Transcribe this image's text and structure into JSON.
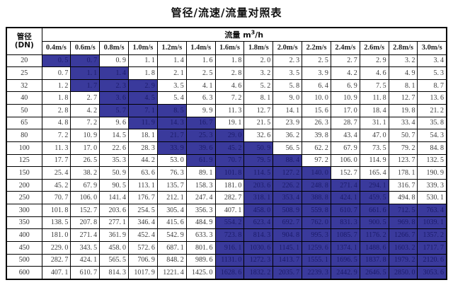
{
  "title": "管径/流速/流量对照表",
  "table": {
    "corner_header": {
      "line1": "管径",
      "line2": "(DN)"
    },
    "flow_header": {
      "prefix": "流量 m",
      "sup": "3",
      "suffix": "/h"
    },
    "velocity_headers": [
      "0.4m/s",
      "0.6m/s",
      "0.8m/s",
      "1.0m/s",
      "1.2m/s",
      "1.4m/s",
      "1.6m/s",
      "1.8m/s",
      "2.0m/s",
      "2.2m/s",
      "2.4m/s",
      "2.6m/s",
      "2.8m/s",
      "3.0m/s"
    ],
    "rows": [
      {
        "dn": "20",
        "values": [
          "0.5",
          "0.7",
          "0.9",
          "1.1",
          "1.4",
          "1.6",
          "1.8",
          "2.0",
          "2.3",
          "2.5",
          "2.7",
          "2.9",
          "3.2",
          "3.4"
        ],
        "highlight": [
          0,
          1
        ]
      },
      {
        "dn": "25",
        "values": [
          "0.7",
          "1.1",
          "1.4",
          "1.8",
          "2.1",
          "2.5",
          "2.8",
          "3.2",
          "3.5",
          "3.9",
          "4.2",
          "4.6",
          "4.9",
          "5.3"
        ],
        "highlight": [
          1,
          2
        ]
      },
      {
        "dn": "32",
        "values": [
          "1.2",
          "1.7",
          "2.3",
          "2.9",
          "3.5",
          "4.1",
          "4.6",
          "5.2",
          "5.8",
          "6.4",
          "6.9",
          "7.5",
          "8.1",
          "8.7"
        ],
        "highlight": [
          1,
          3
        ]
      },
      {
        "dn": "40",
        "values": [
          "1.8",
          "2.7",
          "3.6",
          "4.5",
          "5.4",
          "6.3",
          "7.2",
          "8.1",
          "9.0",
          "10.0",
          "10.9",
          "11.8",
          "12.7",
          "13.6"
        ],
        "highlight": [
          2,
          3
        ]
      },
      {
        "dn": "50",
        "values": [
          "2.8",
          "4.2",
          "5.7",
          "7.1",
          "8.5",
          "9.9",
          "11.3",
          "12.7",
          "14.1",
          "15.6",
          "17.0",
          "18.4",
          "19.8",
          "21.2"
        ],
        "highlight": [
          2,
          4
        ]
      },
      {
        "dn": "65",
        "values": [
          "4.8",
          "7.2",
          "9.6",
          "11.9",
          "14.3",
          "16.7",
          "19.1",
          "21.5",
          "23.9",
          "26.3",
          "28.7",
          "31.1",
          "33.4",
          "35.8"
        ],
        "highlight": [
          3,
          5
        ]
      },
      {
        "dn": "80",
        "values": [
          "7.2",
          "10.9",
          "14.5",
          "18.1",
          "21.7",
          "25.3",
          "29.0",
          "32.6",
          "36.2",
          "39.8",
          "43.4",
          "47.0",
          "50.7",
          "54.3"
        ],
        "highlight": [
          4,
          6
        ]
      },
      {
        "dn": "100",
        "values": [
          "11.3",
          "17.0",
          "22.6",
          "28.3",
          "33.9",
          "39.6",
          "45.2",
          "50.9",
          "56.5",
          "62.2",
          "67.9",
          "73.5",
          "79.2",
          "84.8"
        ],
        "highlight": [
          4,
          7
        ]
      },
      {
        "dn": "125",
        "values": [
          "17.7",
          "26.5",
          "35.3",
          "44.2",
          "53.0",
          "61.9",
          "70.7",
          "79.5",
          "88.4",
          "97.2",
          "106.0",
          "114.9",
          "123.7",
          "132.5"
        ],
        "highlight": [
          5,
          8
        ]
      },
      {
        "dn": "150",
        "values": [
          "25.4",
          "38.2",
          "50.9",
          "63.6",
          "76.3",
          "89.1",
          "101.8",
          "114.5",
          "127.2",
          "140.0",
          "152.7",
          "165.4",
          "178.1",
          "190.9"
        ],
        "highlight": [
          6,
          9
        ]
      },
      {
        "dn": "200",
        "values": [
          "45.2",
          "67.9",
          "90.5",
          "113.1",
          "135.7",
          "158.3",
          "181.0",
          "203.6",
          "226.2",
          "248.8",
          "271.4",
          "294.1",
          "316.7",
          "339.3"
        ],
        "highlight": [
          7,
          11
        ]
      },
      {
        "dn": "250",
        "values": [
          "70.7",
          "106.0",
          "141.4",
          "176.7",
          "212.1",
          "247.4",
          "282.7",
          "318.1",
          "353.4",
          "388.8",
          "424.1",
          "459.5",
          "494.8",
          "530.1"
        ],
        "highlight": [
          7,
          11
        ]
      },
      {
        "dn": "300",
        "values": [
          "101.8",
          "152.7",
          "203.6",
          "254.5",
          "305.4",
          "356.3",
          "407.1",
          "458.0",
          "508.9",
          "559.8",
          "610.7",
          "661.6",
          "712.5",
          "763.4"
        ],
        "highlight": [
          7,
          13
        ]
      },
      {
        "dn": "350",
        "values": [
          "138.5",
          "207.8",
          "277.1",
          "346.4",
          "415.6",
          "484.9",
          "554.2",
          "623.4",
          "692.7",
          "762.0",
          "831.3",
          "900.5",
          "969.8",
          "1039.1"
        ],
        "highlight": [
          6,
          13
        ]
      },
      {
        "dn": "400",
        "values": [
          "181.0",
          "271.4",
          "361.9",
          "452.4",
          "542.9",
          "633.3",
          "723.8",
          "814.3",
          "904.8",
          "995.3",
          "1085.7",
          "1176.2",
          "1266.7",
          "1357.2"
        ],
        "highlight": [
          6,
          13
        ]
      },
      {
        "dn": "450",
        "values": [
          "229.0",
          "343.5",
          "458.0",
          "572.6",
          "687.1",
          "801.6",
          "916.1",
          "1030.6",
          "1145.1",
          "1259.6",
          "1374.1",
          "1488.6",
          "1603.2",
          "1717.7"
        ],
        "highlight": [
          6,
          13
        ]
      },
      {
        "dn": "500",
        "values": [
          "282.7",
          "424.1",
          "565.5",
          "706.9",
          "848.2",
          "989.6",
          "1131.0",
          "1272.3",
          "1413.7",
          "1555.1",
          "1696.5",
          "1837.8",
          "1979.2",
          "2120.6"
        ],
        "highlight": [
          6,
          13
        ]
      },
      {
        "dn": "600",
        "values": [
          "407.1",
          "610.7",
          "814.3",
          "1017.9",
          "1221.4",
          "1425.0",
          "1628.6",
          "1832.2",
          "2035.7",
          "2239.3",
          "2442.9",
          "2646.5",
          "2850.0",
          "3053.6"
        ],
        "highlight": [
          6,
          13
        ]
      }
    ]
  },
  "colors": {
    "highlight_bg": "#3A3A9C",
    "highlight_text": "#1C1C6B",
    "border": "#000000",
    "value_text": "#3B3B3B"
  }
}
